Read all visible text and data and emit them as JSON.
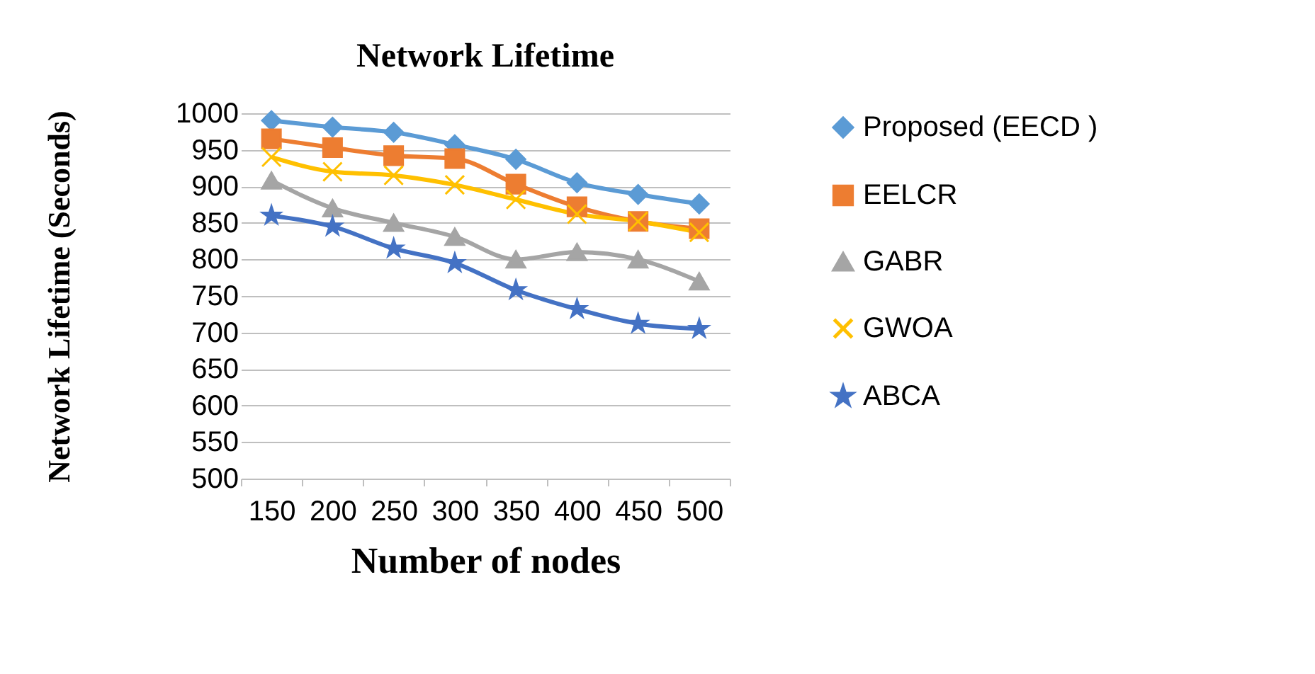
{
  "chart_data": {
    "type": "line",
    "title": "Network Lifetime",
    "xlabel": "Number of nodes",
    "ylabel": "Network Lifetime (Seconds)",
    "categories": [
      "150",
      "200",
      "250",
      "300",
      "350",
      "400",
      "450",
      "500"
    ],
    "series": [
      {
        "name": "Proposed (EECD )",
        "color": "#5b9bd5",
        "marker": "diamond",
        "values": [
          990,
          981,
          974,
          957,
          937,
          905,
          889,
          876
        ]
      },
      {
        "name": "EELCR",
        "color": "#ed7d31",
        "marker": "square",
        "values": [
          965,
          953,
          942,
          938,
          903,
          872,
          852,
          842
        ]
      },
      {
        "name": "GABR",
        "color": "#a5a5a5",
        "marker": "triangle",
        "values": [
          908,
          870,
          850,
          831,
          800,
          810,
          800,
          770
        ]
      },
      {
        "name": "GWOA",
        "color": "#ffc000",
        "marker": "cross",
        "values": [
          940,
          920,
          915,
          902,
          882,
          862,
          852,
          837
        ]
      },
      {
        "name": "ABCA",
        "color": "#4472c4",
        "marker": "star",
        "values": [
          860,
          845,
          815,
          795,
          758,
          732,
          712,
          705
        ]
      }
    ],
    "ylim": [
      500,
      1000
    ],
    "yticks": [
      500,
      550,
      600,
      650,
      700,
      750,
      800,
      850,
      900,
      950,
      1000
    ],
    "grid": "y",
    "legend": "right"
  }
}
